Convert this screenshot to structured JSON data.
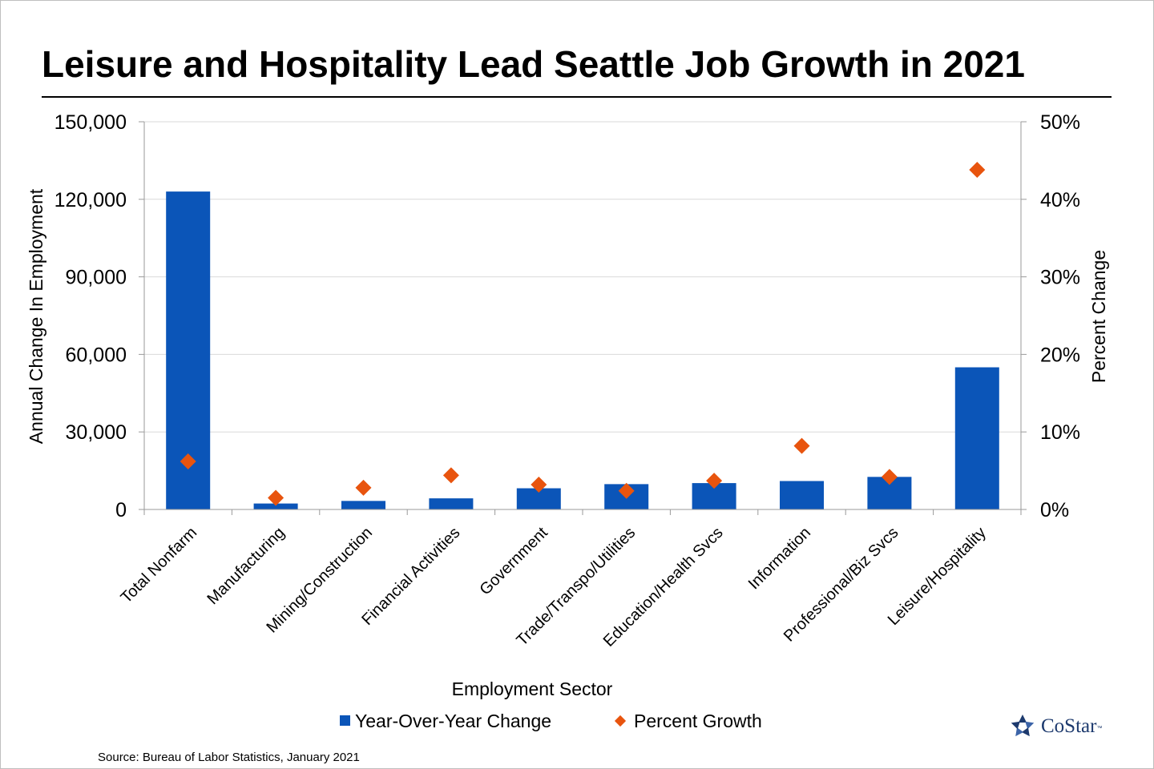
{
  "chart_data": {
    "type": "bar",
    "title": "Leisure and Hospitality Lead Seattle Job Growth in 2021",
    "xlabel": "Employment Sector",
    "ylabel": "Annual Change In Employment",
    "y2label": "Percent Change",
    "ylim": [
      0,
      150000
    ],
    "y2lim": [
      0,
      50
    ],
    "yticks": [
      "0",
      "30,000",
      "60,000",
      "90,000",
      "120,000",
      "150,000"
    ],
    "y2ticks": [
      "0%",
      "10%",
      "20%",
      "30%",
      "40%",
      "50%"
    ],
    "categories": [
      "Total Nonfarm",
      "Manufacturing",
      "Mining/Construction",
      "Financial Activities",
      "Government",
      "Trade/Transpo/Utilities",
      "Education/Health Svcs",
      "Information",
      "Professional/Biz Svcs",
      "Leisure/Hospitality"
    ],
    "series": [
      {
        "name": "Year-Over-Year Change",
        "kind": "bar",
        "axis": "left",
        "color": "#0b55b8",
        "values": [
          123000,
          2300,
          3300,
          4300,
          8200,
          9800,
          10200,
          11000,
          12600,
          55000
        ]
      },
      {
        "name": "Percent Growth",
        "kind": "scatter",
        "axis": "right",
        "marker": "diamond",
        "color": "#e8540e",
        "values": [
          6.2,
          1.5,
          2.8,
          4.4,
          3.2,
          2.4,
          3.7,
          8.2,
          4.2,
          43.8
        ]
      }
    ],
    "grid": true,
    "legend": "bottom"
  },
  "source": "Source: Bureau of Labor Statistics, January 2021",
  "logo": {
    "text": "CoStar",
    "tm": "™"
  }
}
